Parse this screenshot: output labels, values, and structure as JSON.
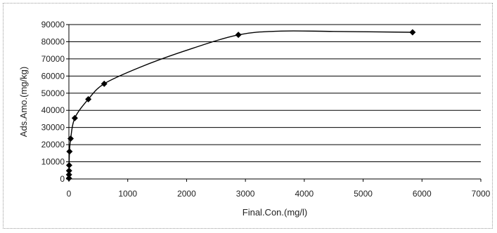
{
  "chart_data": {
    "type": "scatter",
    "xlabel": "Final.Con.(mg/l)",
    "ylabel": "Ads.Amo.(mg/kg)",
    "xlim": [
      0,
      7000
    ],
    "ylim": [
      0,
      90000
    ],
    "x_ticks": [
      0,
      1000,
      2000,
      3000,
      4000,
      5000,
      6000,
      7000
    ],
    "y_ticks": [
      0,
      10000,
      20000,
      30000,
      40000,
      50000,
      60000,
      70000,
      80000,
      90000
    ],
    "grid": "horizontal",
    "legend": "none",
    "series": [
      {
        "marker": "diamond",
        "color": "#000000",
        "points": [
          [
            1,
            400
          ],
          [
            2,
            2500
          ],
          [
            3,
            4800
          ],
          [
            5,
            8000
          ],
          [
            10,
            16000
          ],
          [
            30,
            23500
          ],
          [
            100,
            35500
          ],
          [
            330,
            46500
          ],
          [
            600,
            55500
          ],
          [
            2880,
            84000
          ],
          [
            5840,
            85500
          ]
        ]
      }
    ],
    "trend_curve": {
      "color": "#000000",
      "points": [
        [
          0,
          0
        ],
        [
          10,
          16000
        ],
        [
          30,
          23500
        ],
        [
          100,
          35500
        ],
        [
          330,
          46500
        ],
        [
          600,
          55500
        ],
        [
          1200,
          65000
        ],
        [
          2000,
          75000
        ],
        [
          2880,
          84000
        ],
        [
          3600,
          86200
        ],
        [
          4500,
          86000
        ],
        [
          5840,
          85500
        ]
      ]
    }
  }
}
